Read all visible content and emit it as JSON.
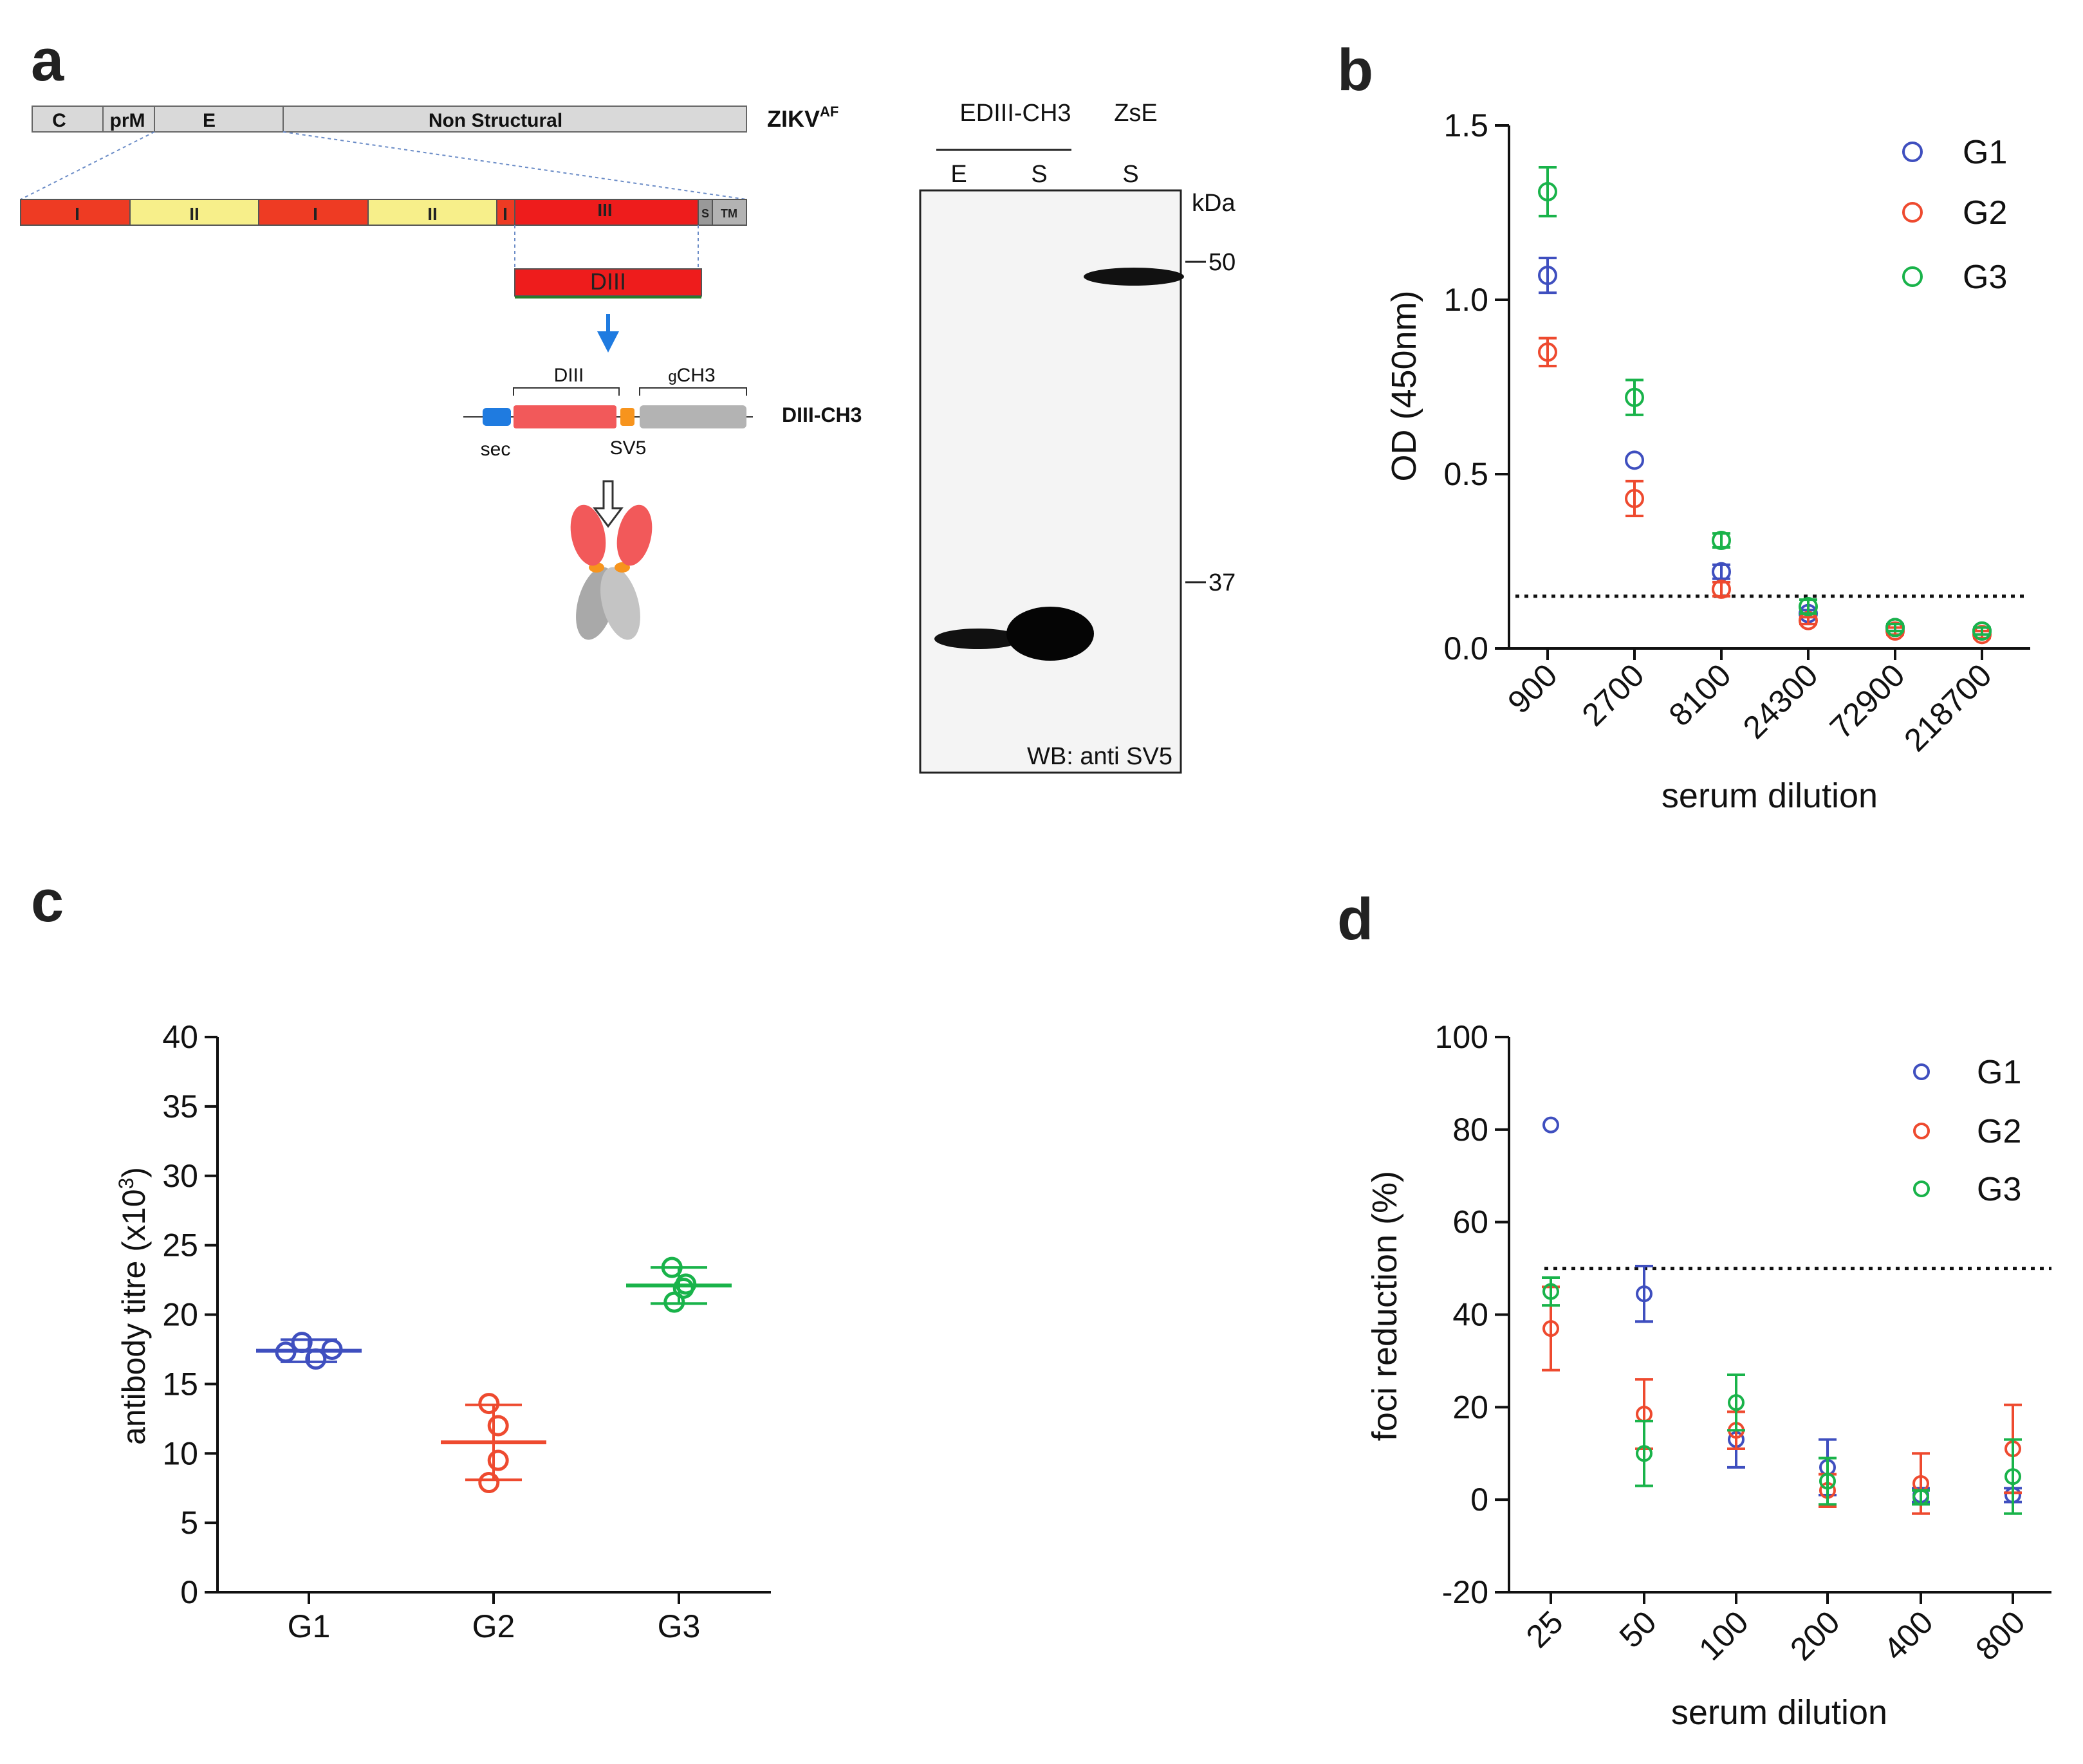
{
  "panel_labels": {
    "a": "a",
    "b": "b",
    "c": "c",
    "d": "d"
  },
  "colors": {
    "G1": "#3f4fbf",
    "G2": "#ee4a2f",
    "G3": "#19b34a",
    "dom_I": "#ee3b23",
    "dom_II": "#f7ef8a",
    "dom_III": "#ee1c1c",
    "grey": "#b3b3b3",
    "sec": "#1f7be0",
    "sv5": "#f7941d"
  },
  "schematic": {
    "genome_segments": [
      "C",
      "prM",
      "E",
      "Non  Structural"
    ],
    "genome_label_main": "ZIKV",
    "genome_label_sup": "AF",
    "domains": [
      "I",
      "II",
      "I",
      "II",
      "I",
      "III",
      "S",
      "TM"
    ],
    "diii_label": "DIII",
    "construct_diii": "DIII",
    "construct_gch3_g": "g",
    "construct_gch3_rest": "CH3",
    "construct_name": "DIII-CH3",
    "sec_label": "sec",
    "sv5_label": "SV5"
  },
  "blot": {
    "group1": "EDIII-CH3",
    "group2": "ZsE",
    "lanes": [
      "E",
      "S",
      "S"
    ],
    "kda": "kDa",
    "marker_50": "50",
    "marker_37": "37",
    "caption": "WB: anti SV5"
  },
  "panel_b": {
    "ylabel": "OD (450nm)",
    "xlabel": "serum dilution",
    "yticks": [
      "0.0",
      "0.5",
      "1.0",
      "1.5"
    ],
    "legend": [
      "G1",
      "G2",
      "G3"
    ],
    "chart_data": {
      "type": "scatter",
      "categories": [
        "900",
        "2700",
        "8100",
        "24300",
        "72900",
        "218700"
      ],
      "ylim": [
        0,
        1.5
      ],
      "cutoff": 0.15,
      "series": [
        {
          "name": "G1",
          "values": [
            1.07,
            0.54,
            0.22,
            0.1,
            0.06,
            0.05
          ],
          "err": [
            0.05,
            0.0,
            0.02,
            0.01,
            0.01,
            0.01
          ]
        },
        {
          "name": "G2",
          "values": [
            0.85,
            0.43,
            0.17,
            0.08,
            0.05,
            0.04
          ],
          "err": [
            0.04,
            0.05,
            0.02,
            0.01,
            0.01,
            0.01
          ]
        },
        {
          "name": "G3",
          "values": [
            1.31,
            0.72,
            0.31,
            0.12,
            0.06,
            0.05
          ],
          "err": [
            0.07,
            0.05,
            0.02,
            0.02,
            0.01,
            0.01
          ]
        }
      ]
    }
  },
  "panel_c": {
    "ylabel_main": "antibody titre (x10",
    "ylabel_sup": "3",
    "ylabel_end": ")",
    "yticks": [
      "0",
      "5",
      "10",
      "15",
      "20",
      "25",
      "30",
      "35",
      "40"
    ],
    "chart_data": {
      "type": "scatter",
      "categories": [
        "G1",
        "G2",
        "G3"
      ],
      "ylim": [
        0,
        40
      ],
      "groups": [
        {
          "name": "G1",
          "points": [
            17.3,
            18.0,
            16.8,
            17.5
          ],
          "jitter": [
            -1,
            -0.3,
            0.3,
            1
          ],
          "mean": 17.4,
          "sd": 0.8
        },
        {
          "name": "G2",
          "points": [
            13.6,
            12.0,
            9.5,
            7.9
          ],
          "jitter": [
            -0.2,
            0.2,
            0.2,
            -0.2
          ],
          "mean": 10.8,
          "sd": 2.7
        },
        {
          "name": "G3",
          "points": [
            23.4,
            21.9,
            20.9,
            22.2
          ],
          "jitter": [
            -0.3,
            0.2,
            -0.2,
            0.3
          ],
          "mean": 22.1,
          "sd": 1.3
        }
      ]
    }
  },
  "panel_d": {
    "ylabel": "foci reduction (%)",
    "xlabel": "serum dilution",
    "yticks": [
      "-20",
      "0",
      "20",
      "40",
      "60",
      "80",
      "100"
    ],
    "legend": [
      "G1",
      "G2",
      "G3"
    ],
    "chart_data": {
      "type": "scatter",
      "categories": [
        "25",
        "50",
        "100",
        "200",
        "400",
        "800"
      ],
      "ylim": [
        -20,
        100
      ],
      "cutoff": 50,
      "series": [
        {
          "name": "G1",
          "values": [
            81,
            44.5,
            13,
            7,
            1,
            1
          ],
          "err": [
            0,
            6,
            6,
            6,
            1.5,
            1.5
          ]
        },
        {
          "name": "G2",
          "values": [
            37,
            18.5,
            15,
            2,
            3.5,
            11
          ],
          "err": [
            9,
            7.5,
            4,
            3.5,
            6.5,
            9.5
          ]
        },
        {
          "name": "G3",
          "values": [
            45,
            10,
            21,
            4,
            0.5,
            5
          ],
          "err": [
            3,
            7,
            6,
            5,
            1.5,
            8
          ]
        }
      ]
    }
  }
}
